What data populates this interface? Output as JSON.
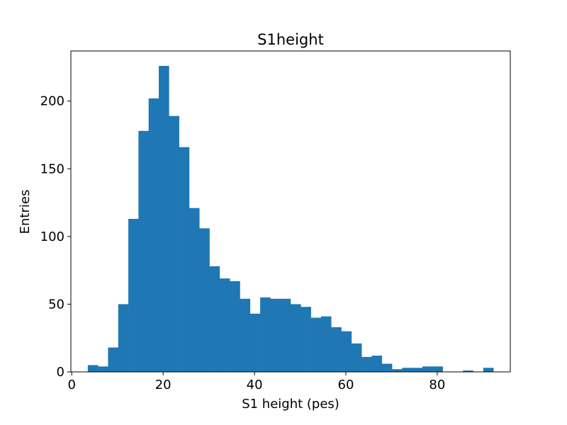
{
  "chart_data": {
    "type": "bar",
    "title": "S1height",
    "xlabel": "S1 height (pes)",
    "ylabel": "Entries",
    "xlim": [
      -0.2,
      96.0
    ],
    "ylim": [
      0,
      237
    ],
    "xticks": [
      0,
      20,
      40,
      60,
      80
    ],
    "yticks": [
      0,
      50,
      100,
      150,
      200
    ],
    "grid": false,
    "legend": "none",
    "bar_color": "#1f77b4",
    "bin_width": 2.22,
    "bins": [
      {
        "x0": 3.5,
        "value": 5
      },
      {
        "x0": 5.72,
        "value": 4
      },
      {
        "x0": 7.94,
        "value": 18
      },
      {
        "x0": 10.16,
        "value": 50
      },
      {
        "x0": 12.38,
        "value": 113
      },
      {
        "x0": 14.6,
        "value": 178
      },
      {
        "x0": 16.82,
        "value": 202
      },
      {
        "x0": 19.04,
        "value": 226
      },
      {
        "x0": 21.26,
        "value": 189
      },
      {
        "x0": 23.48,
        "value": 166
      },
      {
        "x0": 25.7,
        "value": 121
      },
      {
        "x0": 27.92,
        "value": 106
      },
      {
        "x0": 30.14,
        "value": 78
      },
      {
        "x0": 32.36,
        "value": 69
      },
      {
        "x0": 34.58,
        "value": 67
      },
      {
        "x0": 36.8,
        "value": 54
      },
      {
        "x0": 39.02,
        "value": 43
      },
      {
        "x0": 41.24,
        "value": 55
      },
      {
        "x0": 43.46,
        "value": 54
      },
      {
        "x0": 45.68,
        "value": 54
      },
      {
        "x0": 47.9,
        "value": 50
      },
      {
        "x0": 50.12,
        "value": 48
      },
      {
        "x0": 52.34,
        "value": 40
      },
      {
        "x0": 54.56,
        "value": 41
      },
      {
        "x0": 56.78,
        "value": 33
      },
      {
        "x0": 59.0,
        "value": 30
      },
      {
        "x0": 61.22,
        "value": 21
      },
      {
        "x0": 63.44,
        "value": 11
      },
      {
        "x0": 65.66,
        "value": 12
      },
      {
        "x0": 67.88,
        "value": 6
      },
      {
        "x0": 70.1,
        "value": 2
      },
      {
        "x0": 72.32,
        "value": 3
      },
      {
        "x0": 74.54,
        "value": 3
      },
      {
        "x0": 76.76,
        "value": 4
      },
      {
        "x0": 78.98,
        "value": 4
      },
      {
        "x0": 81.2,
        "value": 0
      },
      {
        "x0": 83.42,
        "value": 0
      },
      {
        "x0": 85.64,
        "value": 1
      },
      {
        "x0": 87.86,
        "value": 0
      },
      {
        "x0": 90.08,
        "value": 3
      }
    ]
  }
}
